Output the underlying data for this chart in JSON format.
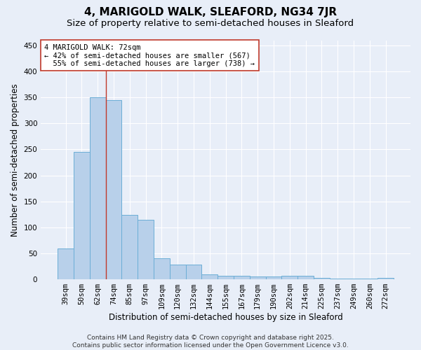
{
  "title1": "4, MARIGOLD WALK, SLEAFORD, NG34 7JR",
  "title2": "Size of property relative to semi-detached houses in Sleaford",
  "xlabel": "Distribution of semi-detached houses by size in Sleaford",
  "ylabel": "Number of semi-detached properties",
  "categories": [
    "39sqm",
    "50sqm",
    "62sqm",
    "74sqm",
    "85sqm",
    "97sqm",
    "109sqm",
    "120sqm",
    "132sqm",
    "144sqm",
    "155sqm",
    "167sqm",
    "179sqm",
    "190sqm",
    "202sqm",
    "214sqm",
    "225sqm",
    "237sqm",
    "249sqm",
    "260sqm",
    "272sqm"
  ],
  "values": [
    60,
    245,
    350,
    345,
    124,
    115,
    40,
    29,
    29,
    9,
    7,
    7,
    6,
    6,
    7,
    7,
    3,
    1,
    1,
    1,
    3
  ],
  "bar_color": "#b8d0ea",
  "bar_edge_color": "#6baed6",
  "vline_color": "#c0392b",
  "annotation_line1": "4 MARIGOLD WALK: 72sqm",
  "annotation_line2": "← 42% of semi-detached houses are smaller (567)",
  "annotation_line3": "  55% of semi-detached houses are larger (738) →",
  "annotation_box_edgecolor": "#c0392b",
  "annotation_box_facecolor": "#ffffff",
  "ylim": [
    0,
    460
  ],
  "yticks": [
    0,
    50,
    100,
    150,
    200,
    250,
    300,
    350,
    400,
    450
  ],
  "background_color": "#e8eef8",
  "grid_color": "#ffffff",
  "footer_text": "Contains HM Land Registry data © Crown copyright and database right 2025.\nContains public sector information licensed under the Open Government Licence v3.0.",
  "title1_fontsize": 11,
  "title2_fontsize": 9.5,
  "axis_label_fontsize": 8.5,
  "tick_fontsize": 7.5,
  "annotation_fontsize": 7.5,
  "footer_fontsize": 6.5
}
